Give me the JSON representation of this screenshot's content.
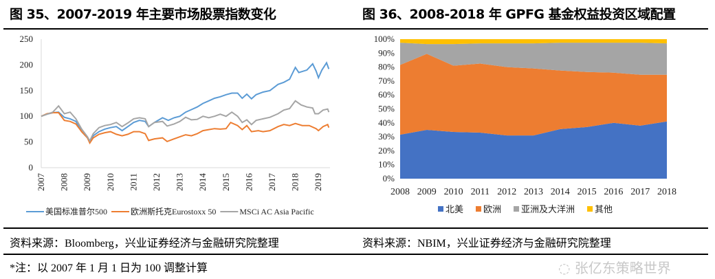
{
  "left": {
    "title": "图 35、2007-2019 年主要市场股票指数变化",
    "source": "资料来源：Bloomberg，兴业证券经济与金融研究院整理",
    "note": "*注：以 2007 年 1 月 1 日为 100 调整计算"
  },
  "right": {
    "title": "图 36、2008-2018 年 GPFG 基金权益投资区域配置",
    "source": "资料来源：NBIM，兴业证券经济与金融研究院整理"
  },
  "watermark": "张亿东策略世界",
  "chart_data": [
    {
      "type": "line",
      "ylim": [
        0,
        250
      ],
      "yticks": [
        0,
        50,
        100,
        150,
        200,
        250
      ],
      "xlim": [
        2007,
        2019.5
      ],
      "xticks": [
        "2007",
        "2008",
        "2009",
        "2010",
        "2011",
        "2012",
        "2013",
        "2014",
        "2015",
        "2016",
        "2017",
        "2018",
        "2019"
      ],
      "grid": false,
      "legend": "bottom",
      "series": [
        {
          "name": "美国标准普尔500",
          "color": "#5b9bd5",
          "x": [
            2007,
            2007.25,
            2007.5,
            2007.75,
            2008,
            2008.25,
            2008.5,
            2008.75,
            2009,
            2009.1,
            2009.25,
            2009.5,
            2009.75,
            2010,
            2010.25,
            2010.5,
            2010.75,
            2011,
            2011.25,
            2011.5,
            2011.65,
            2011.9,
            2012.25,
            2012.5,
            2012.75,
            2013,
            2013.25,
            2013.5,
            2013.75,
            2014,
            2014.25,
            2014.5,
            2014.75,
            2015,
            2015.25,
            2015.5,
            2015.7,
            2015.9,
            2016.1,
            2016.3,
            2016.6,
            2016.9,
            2017.25,
            2017.5,
            2017.75,
            2018,
            2018.15,
            2018.5,
            2018.75,
            2018.9,
            2019,
            2019.15,
            2019.35,
            2019.45
          ],
          "y": [
            100,
            104,
            107,
            108,
            98,
            95,
            90,
            70,
            58,
            50,
            62,
            70,
            75,
            78,
            80,
            72,
            80,
            88,
            92,
            90,
            80,
            88,
            97,
            92,
            97,
            100,
            108,
            113,
            118,
            125,
            130,
            135,
            138,
            142,
            145,
            145,
            135,
            143,
            134,
            142,
            147,
            150,
            162,
            166,
            172,
            195,
            185,
            190,
            202,
            188,
            175,
            190,
            204,
            192
          ]
        },
        {
          "name": "欧洲斯托克Eurostoxx 50",
          "color": "#ed7d31",
          "x": [
            2007,
            2007.25,
            2007.5,
            2007.75,
            2008,
            2008.25,
            2008.5,
            2008.75,
            2009,
            2009.1,
            2009.25,
            2009.5,
            2009.75,
            2010,
            2010.25,
            2010.5,
            2010.75,
            2011,
            2011.25,
            2011.5,
            2011.65,
            2011.9,
            2012.25,
            2012.45,
            2012.75,
            2013,
            2013.25,
            2013.5,
            2013.75,
            2014,
            2014.25,
            2014.5,
            2014.75,
            2015,
            2015.2,
            2015.5,
            2015.7,
            2015.9,
            2016.1,
            2016.4,
            2016.6,
            2016.9,
            2017.25,
            2017.5,
            2017.75,
            2018,
            2018.3,
            2018.6,
            2018.9,
            2019,
            2019.2,
            2019.4,
            2019.45
          ],
          "y": [
            100,
            105,
            107,
            107,
            92,
            90,
            85,
            70,
            58,
            48,
            58,
            65,
            68,
            70,
            65,
            62,
            65,
            70,
            70,
            66,
            53,
            56,
            58,
            51,
            56,
            60,
            64,
            62,
            66,
            72,
            74,
            76,
            75,
            76,
            88,
            82,
            74,
            82,
            70,
            72,
            70,
            72,
            80,
            84,
            82,
            86,
            82,
            82,
            76,
            72,
            80,
            84,
            78
          ]
        },
        {
          "name": "MSCi AC Asia Pacific",
          "color": "#a5a5a5",
          "x": [
            2007,
            2007.25,
            2007.5,
            2007.75,
            2008,
            2008.25,
            2008.5,
            2008.75,
            2009,
            2009.1,
            2009.25,
            2009.5,
            2009.75,
            2010,
            2010.25,
            2010.5,
            2010.75,
            2011,
            2011.25,
            2011.5,
            2011.65,
            2011.9,
            2012.25,
            2012.45,
            2012.75,
            2013,
            2013.25,
            2013.5,
            2013.75,
            2014,
            2014.25,
            2014.5,
            2014.75,
            2015,
            2015.25,
            2015.5,
            2015.7,
            2015.9,
            2016.1,
            2016.3,
            2016.6,
            2016.9,
            2017.25,
            2017.5,
            2017.75,
            2018,
            2018.25,
            2018.5,
            2018.75,
            2018.85,
            2019,
            2019.2,
            2019.4,
            2019.45
          ],
          "y": [
            100,
            104,
            108,
            120,
            105,
            108,
            95,
            75,
            60,
            52,
            66,
            78,
            82,
            84,
            88,
            80,
            87,
            95,
            97,
            95,
            80,
            88,
            90,
            81,
            85,
            90,
            98,
            93,
            94,
            100,
            97,
            100,
            104,
            100,
            108,
            100,
            88,
            93,
            84,
            92,
            95,
            98,
            105,
            112,
            115,
            130,
            122,
            118,
            116,
            105,
            105,
            112,
            114,
            108
          ]
        }
      ]
    },
    {
      "type": "area",
      "stacked": true,
      "ylim": [
        0,
        100
      ],
      "yticks": [
        "0%",
        "10%",
        "20%",
        "30%",
        "40%",
        "50%",
        "60%",
        "70%",
        "80%",
        "90%",
        "100%"
      ],
      "categories": [
        "2008",
        "2009",
        "2010",
        "2011",
        "2012",
        "2013",
        "2014",
        "2015",
        "2016",
        "2017",
        "2018"
      ],
      "grid": false,
      "legend": "bottom",
      "series": [
        {
          "name": "北美",
          "color": "#4472c4",
          "values": [
            31.5,
            35,
            33.5,
            33,
            31,
            31,
            35.5,
            37,
            40,
            38,
            41
          ]
        },
        {
          "name": "欧洲",
          "color": "#ed7d31",
          "values": [
            50,
            54.5,
            47.5,
            49.5,
            49,
            48,
            42,
            39.5,
            36,
            36.5,
            33.5
          ]
        },
        {
          "name": "亚洲及大洋洲",
          "color": "#a5a5a5",
          "values": [
            16,
            7,
            15.5,
            14.5,
            17,
            18,
            20,
            21,
            21.5,
            23,
            22.5
          ]
        },
        {
          "name": "其他",
          "color": "#ffc000",
          "values": [
            2.5,
            3.5,
            3.5,
            3,
            3,
            3,
            2.5,
            2.5,
            2.5,
            2.5,
            3
          ]
        }
      ]
    }
  ]
}
